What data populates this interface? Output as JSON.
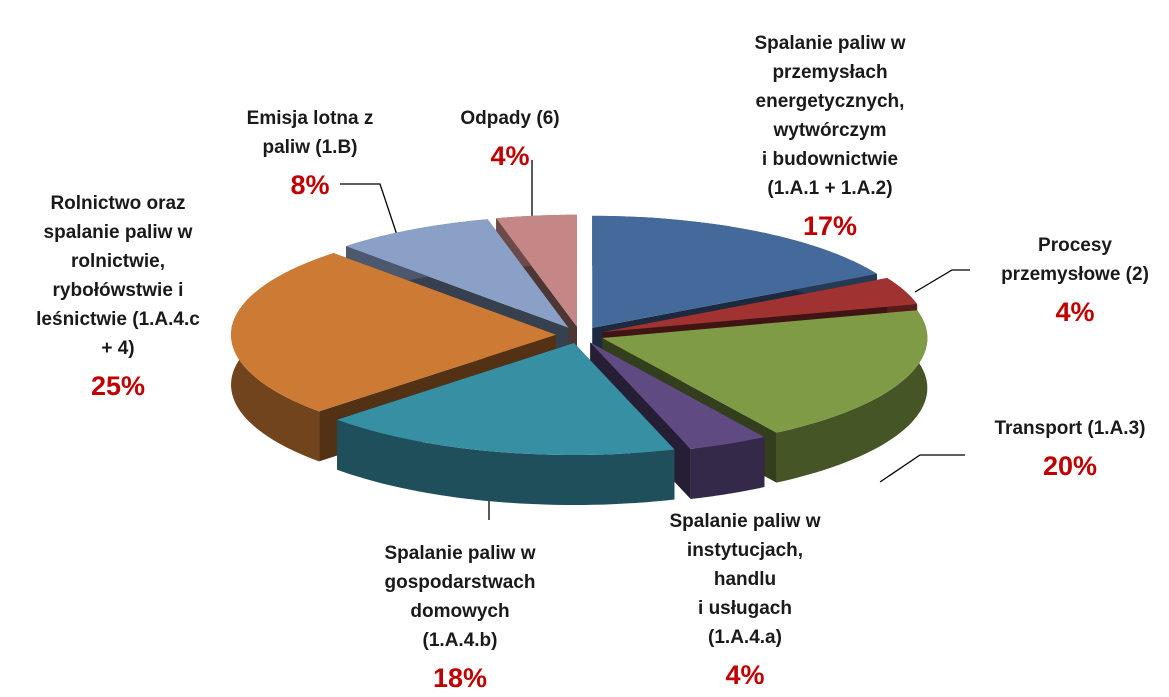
{
  "chart_data": {
    "type": "pie3d",
    "categories": [
      "Spalanie paliw w\nprzemysłach\nenergetycznych,\nwytwórczym\ni budownictwie\n(1.A.1 + 1.A.2)",
      "Procesy\nprzemysłowe (2)",
      "Transport (1.A.3)",
      "Spalanie paliw w\ninstytucjach,\nhandlu\ni usługach\n(1.A.4.a)",
      "Spalanie paliw w\ngospodarstwach\ndomowych\n(1.A.4.b)",
      "Rolnictwo oraz\nspalanie paliw w\nrolnictwie,\nrybołówstwie i\nleśnictwie (1.A.4.c\n+ 4)",
      "Emisja lotna z\npaliw (1.B)",
      "Odpady (6)"
    ],
    "values": [
      17,
      4,
      20,
      4,
      18,
      25,
      8,
      4
    ],
    "value_labels": [
      "17%",
      "4%",
      "20%",
      "4%",
      "18%",
      "25%",
      "8%",
      "4%"
    ],
    "colors": [
      "#44699b",
      "#a03232",
      "#7f9b45",
      "#5f4a82",
      "#378fa3",
      "#cd7b34",
      "#8aa0c6",
      "#c48785"
    ]
  }
}
